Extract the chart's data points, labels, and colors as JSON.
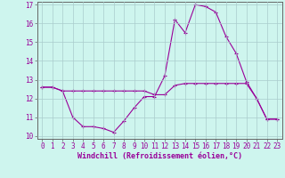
{
  "xlabel": "Windchill (Refroidissement éolien,°C)",
  "background_color": "#cef5ee",
  "grid_color": "#aacccc",
  "line_color": "#990099",
  "spine_color": "#666666",
  "x_hours": [
    0,
    1,
    2,
    3,
    4,
    5,
    6,
    7,
    8,
    9,
    10,
    11,
    12,
    13,
    14,
    15,
    16,
    17,
    18,
    19,
    20,
    21,
    22,
    23
  ],
  "windchill": [
    12.6,
    12.6,
    12.4,
    11.0,
    10.5,
    10.5,
    10.4,
    10.2,
    10.8,
    11.5,
    12.1,
    12.1,
    13.2,
    16.2,
    15.5,
    17.0,
    16.9,
    16.6,
    15.3,
    14.4,
    12.9,
    12.0,
    10.9,
    10.9
  ],
  "templine": [
    12.6,
    12.6,
    12.4,
    12.4,
    12.4,
    12.4,
    12.4,
    12.4,
    12.4,
    12.4,
    12.4,
    12.2,
    12.2,
    12.7,
    12.8,
    12.8,
    12.8,
    12.8,
    12.8,
    12.8,
    12.8,
    12.0,
    10.9,
    10.9
  ],
  "ylim": [
    9.85,
    17.15
  ],
  "yticks": [
    10,
    11,
    12,
    13,
    14,
    15,
    16,
    17
  ],
  "xticks": [
    0,
    1,
    2,
    3,
    4,
    5,
    6,
    7,
    8,
    9,
    10,
    11,
    12,
    13,
    14,
    15,
    16,
    17,
    18,
    19,
    20,
    21,
    22,
    23
  ],
  "tick_label_fontsize": 5.5,
  "xlabel_fontsize": 6.0
}
